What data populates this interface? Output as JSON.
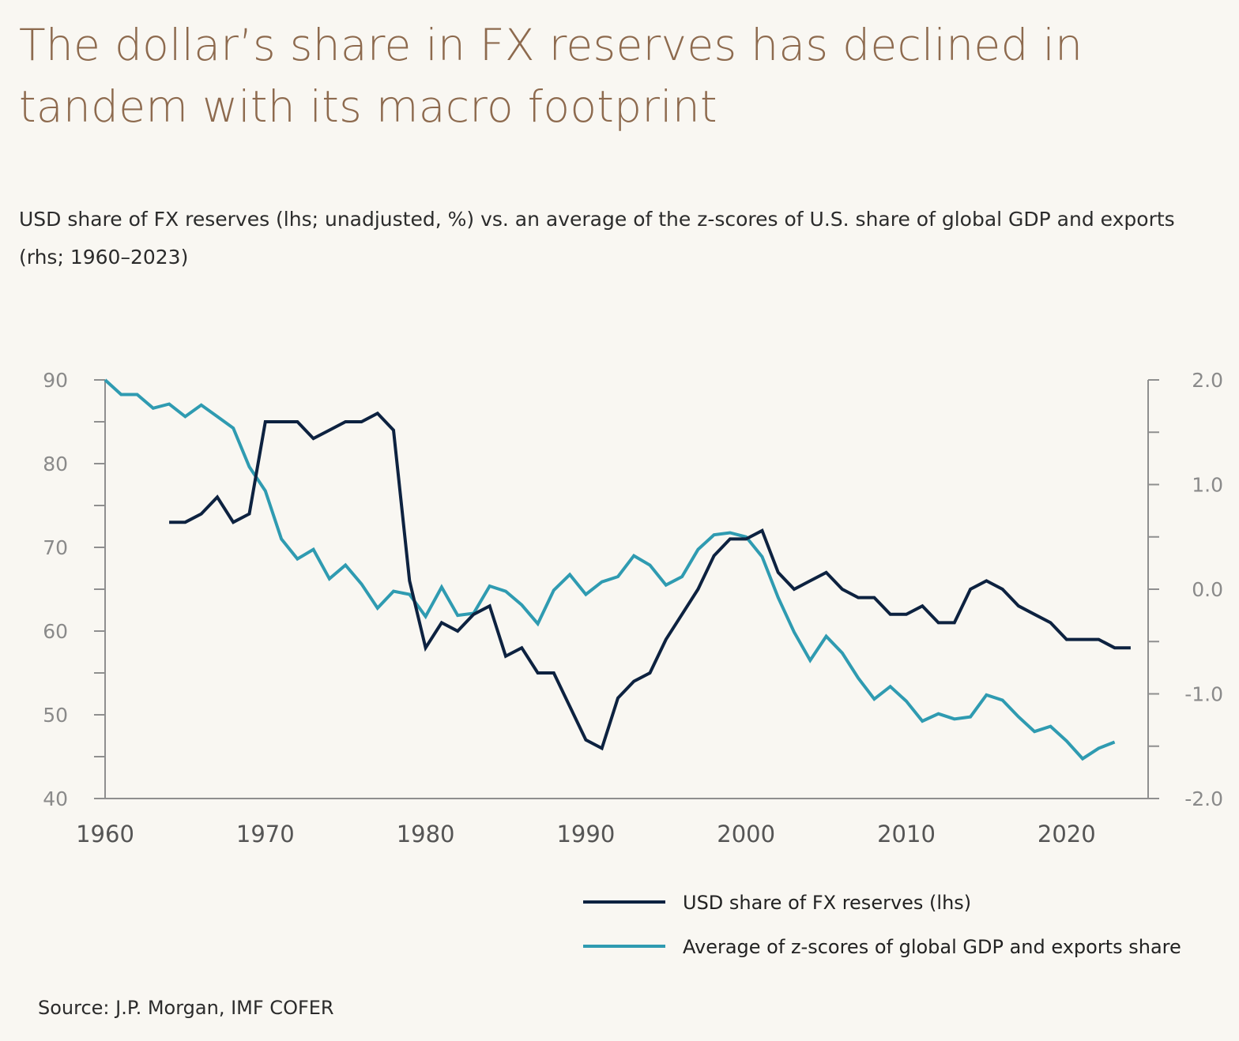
{
  "title": "The dollar’s share in FX reserves has declined in tandem with its macro footprint",
  "subtitle": "USD share of FX reserves (lhs; unadjusted, %) vs. an average of the z-scores of U.S. share of global GDP and exports (rhs; 1960–2023)",
  "source": "Source: J.P. Morgan, IMF COFER",
  "chart_data": {
    "type": "line",
    "title": "The dollar’s share in FX reserves has declined in tandem with its macro footprint",
    "xlim": [
      1960,
      2025
    ],
    "x_ticks": [
      "1960",
      "1970",
      "1980",
      "1990",
      "2000",
      "2010",
      "2020"
    ],
    "ylim_left": [
      40,
      90
    ],
    "y_ticks_left": [
      "90",
      "80",
      "70",
      "60",
      "50",
      "40"
    ],
    "ylim_right": [
      -2.0,
      2.0
    ],
    "y_ticks_right": [
      "2.0",
      "1.0",
      "0.0",
      "-1.0",
      "-2.0"
    ],
    "grid": false,
    "legend_position": "bottom-right",
    "colors": {
      "usd": "#0d2240",
      "zscore": "#2f9bb1"
    },
    "series": [
      {
        "name": "USD share of FX reserves (lhs)",
        "axis": "left",
        "x": [
          1964,
          1965,
          1966,
          1967,
          1968,
          1969,
          1970,
          1971,
          1972,
          1973,
          1974,
          1975,
          1976,
          1977,
          1978,
          1979,
          1980,
          1981,
          1982,
          1983,
          1984,
          1985,
          1986,
          1987,
          1988,
          1989,
          1990,
          1991,
          1992,
          1993,
          1994,
          1995,
          1996,
          1997,
          1998,
          1999,
          2000,
          2001,
          2002,
          2003,
          2004,
          2005,
          2006,
          2007,
          2008,
          2009,
          2010,
          2011,
          2012,
          2013,
          2014,
          2015,
          2016,
          2017,
          2018,
          2019,
          2020,
          2021,
          2022,
          2023,
          2024
        ],
        "values": [
          73,
          73,
          74,
          76,
          73,
          74,
          85,
          85,
          85,
          83,
          84,
          85,
          85,
          86,
          84,
          66,
          58,
          61,
          60,
          62,
          63,
          57,
          58,
          55,
          55,
          51,
          47,
          46,
          52,
          54,
          55,
          59,
          62,
          65,
          69,
          71,
          71,
          72,
          67,
          65,
          66,
          67,
          65,
          64,
          64,
          62,
          62,
          63,
          61,
          61,
          65,
          66,
          65,
          63,
          62,
          61,
          59,
          59,
          59,
          58,
          58
        ]
      },
      {
        "name": "Average of z-scores of global GDP and exports share",
        "axis": "right",
        "x": [
          1960,
          1961,
          1962,
          1963,
          1964,
          1965,
          1966,
          1967,
          1968,
          1969,
          1970,
          1971,
          1972,
          1973,
          1974,
          1975,
          1976,
          1977,
          1978,
          1979,
          1980,
          1981,
          1982,
          1983,
          1984,
          1985,
          1986,
          1987,
          1988,
          1989,
          1990,
          1991,
          1992,
          1993,
          1994,
          1995,
          1996,
          1997,
          1998,
          1999,
          2000,
          2001,
          2002,
          2003,
          2004,
          2005,
          2006,
          2007,
          2008,
          2009,
          2010,
          2011,
          2012,
          2013,
          2014,
          2015,
          2016,
          2017,
          2018,
          2019,
          2020,
          2021,
          2022,
          2023
        ],
        "values": [
          2.0,
          1.86,
          1.86,
          1.73,
          1.77,
          1.65,
          1.76,
          1.65,
          1.54,
          1.17,
          0.94,
          0.48,
          0.29,
          0.38,
          0.1,
          0.23,
          0.05,
          -0.18,
          -0.02,
          -0.05,
          -0.26,
          0.02,
          -0.25,
          -0.23,
          0.03,
          -0.02,
          -0.15,
          -0.33,
          -0.01,
          0.14,
          -0.05,
          0.07,
          0.12,
          0.32,
          0.23,
          0.04,
          0.12,
          0.38,
          0.52,
          0.54,
          0.5,
          0.31,
          -0.08,
          -0.41,
          -0.68,
          -0.45,
          -0.61,
          -0.85,
          -1.05,
          -0.93,
          -1.07,
          -1.26,
          -1.19,
          -1.24,
          -1.22,
          -1.01,
          -1.06,
          -1.22,
          -1.36,
          -1.31,
          -1.45,
          -1.62,
          -1.52,
          -1.46
        ]
      }
    ]
  }
}
